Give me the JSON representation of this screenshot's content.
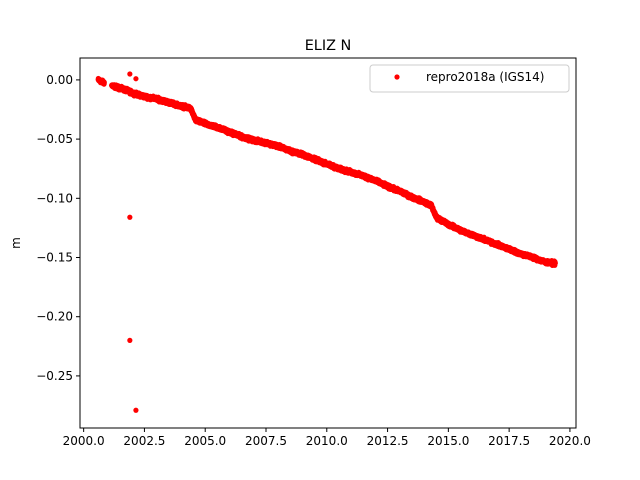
{
  "chart_data": {
    "type": "scatter",
    "title": "ELIZ N",
    "xlabel": "",
    "ylabel": "m",
    "xlim": [
      1999.85,
      2020.25
    ],
    "ylim": [
      -0.294,
      0.0185
    ],
    "x_ticks": [
      2000.0,
      2002.5,
      2005.0,
      2007.5,
      2010.0,
      2012.5,
      2015.0,
      2017.5,
      2020.0
    ],
    "x_tick_labels": [
      "2000.0",
      "2002.5",
      "2005.0",
      "2007.5",
      "2010.0",
      "2012.5",
      "2015.0",
      "2017.5",
      "2020.0"
    ],
    "y_ticks": [
      0.0,
      -0.05,
      -0.1,
      -0.15,
      -0.2,
      -0.25
    ],
    "y_tick_labels": [
      "0.00",
      "−0.05",
      "−0.10",
      "−0.15",
      "−0.20",
      "−0.25"
    ],
    "grid": false,
    "legend_position": "upper right",
    "series": [
      {
        "name": "repro2018a (IGS14)",
        "color": "#ff0000",
        "marker": "circle",
        "trend": [
          [
            2000.6,
            0.0
          ],
          [
            2000.8,
            -0.002
          ],
          [
            2001.2,
            -0.005
          ],
          [
            2001.8,
            -0.009
          ],
          [
            2002.0,
            -0.011
          ],
          [
            2002.5,
            -0.014
          ],
          [
            2003.0,
            -0.016
          ],
          [
            2003.5,
            -0.019
          ],
          [
            2004.0,
            -0.022
          ],
          [
            2004.4,
            -0.024
          ],
          [
            2004.6,
            -0.034
          ],
          [
            2005.0,
            -0.037
          ],
          [
            2005.5,
            -0.04
          ],
          [
            2006.0,
            -0.044
          ],
          [
            2006.5,
            -0.048
          ],
          [
            2007.0,
            -0.051
          ],
          [
            2007.5,
            -0.053
          ],
          [
            2008.0,
            -0.056
          ],
          [
            2008.5,
            -0.06
          ],
          [
            2009.0,
            -0.063
          ],
          [
            2009.5,
            -0.067
          ],
          [
            2010.0,
            -0.071
          ],
          [
            2010.5,
            -0.075
          ],
          [
            2011.0,
            -0.078
          ],
          [
            2011.5,
            -0.081
          ],
          [
            2012.0,
            -0.085
          ],
          [
            2012.5,
            -0.09
          ],
          [
            2013.0,
            -0.094
          ],
          [
            2013.5,
            -0.099
          ],
          [
            2014.0,
            -0.103
          ],
          [
            2014.3,
            -0.106
          ],
          [
            2014.5,
            -0.116
          ],
          [
            2015.0,
            -0.122
          ],
          [
            2015.5,
            -0.127
          ],
          [
            2016.0,
            -0.131
          ],
          [
            2016.5,
            -0.135
          ],
          [
            2017.0,
            -0.139
          ],
          [
            2017.5,
            -0.143
          ],
          [
            2018.0,
            -0.147
          ],
          [
            2018.5,
            -0.15
          ],
          [
            2019.0,
            -0.154
          ],
          [
            2019.4,
            -0.155
          ]
        ],
        "outliers": [
          [
            2001.9,
            0.005
          ],
          [
            2002.15,
            0.001
          ],
          [
            2001.9,
            -0.116
          ],
          [
            2001.9,
            -0.22
          ],
          [
            2002.15,
            -0.279
          ]
        ]
      }
    ]
  }
}
